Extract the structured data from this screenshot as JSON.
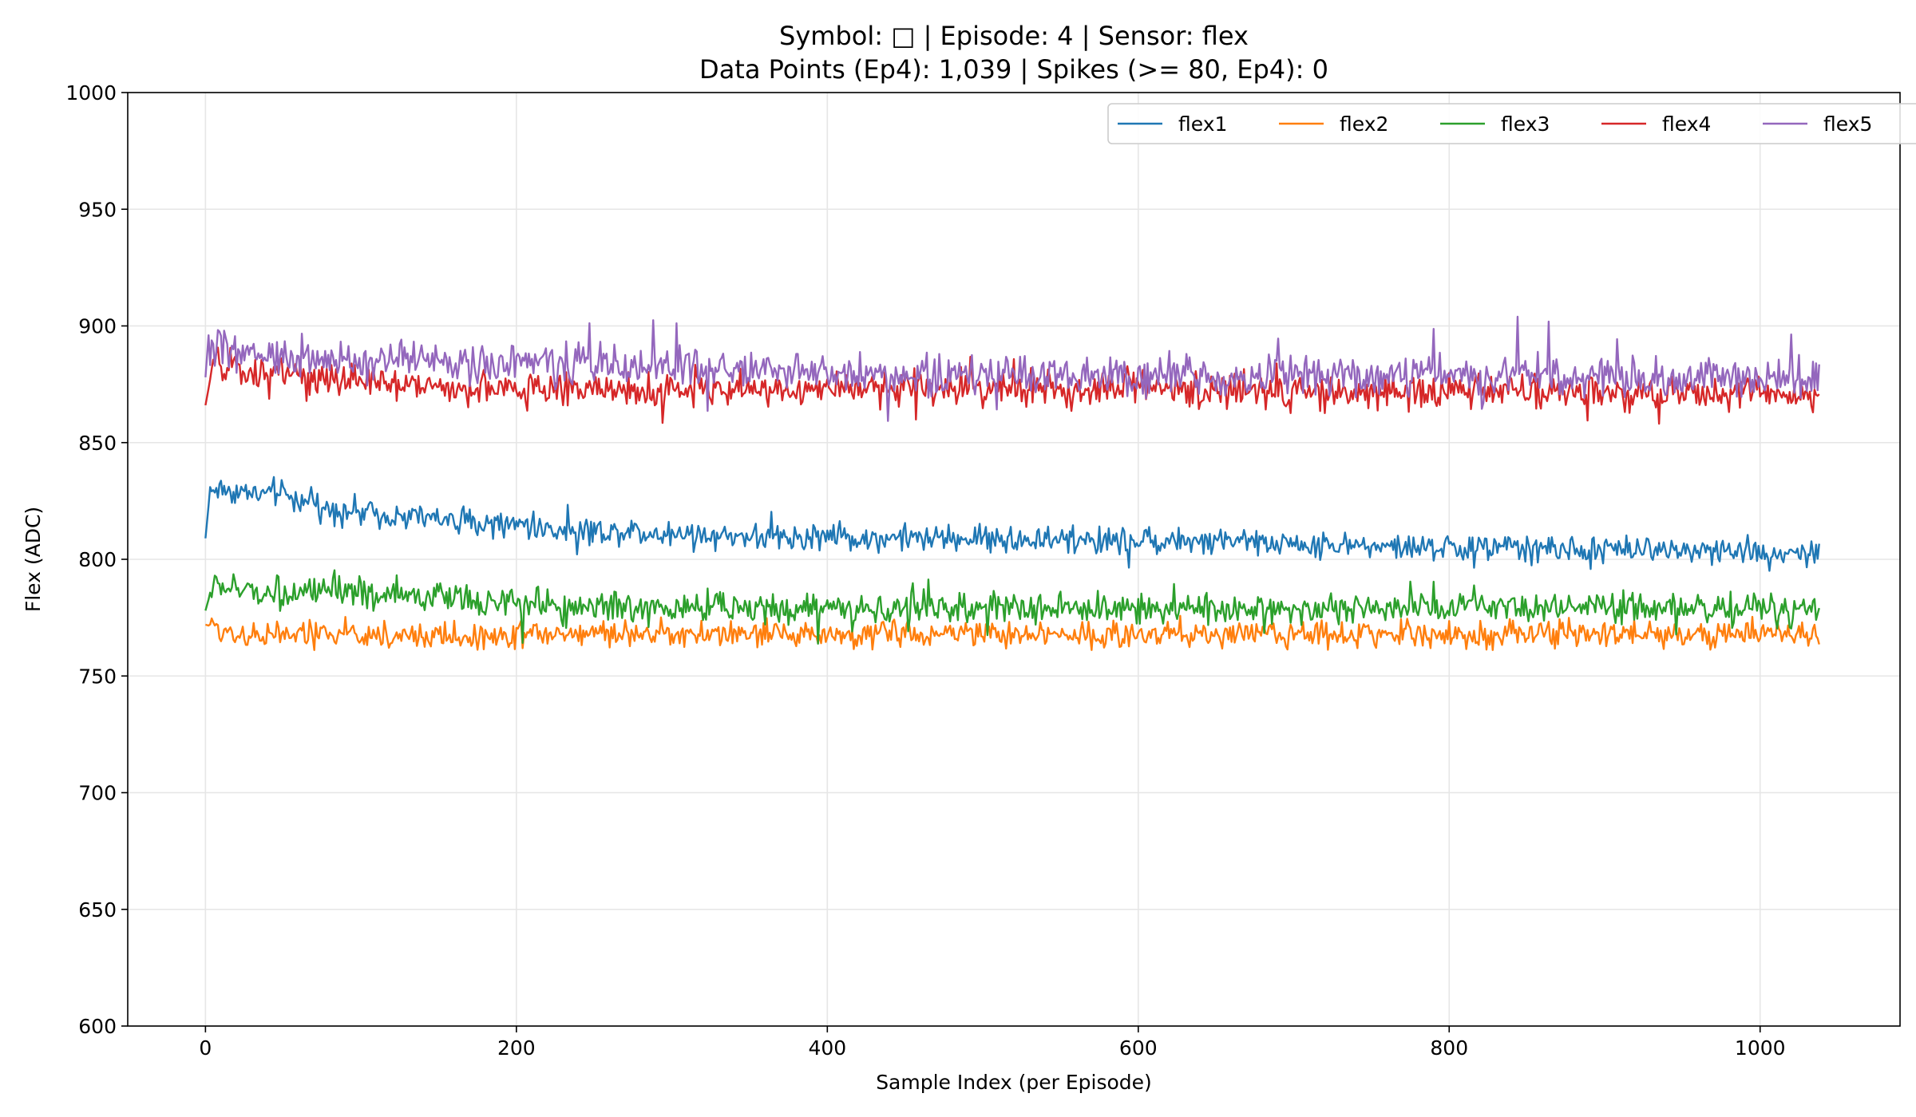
{
  "chart_data": {
    "type": "line",
    "title": "Symbol: □ | Episode: 4 | Sensor: flex",
    "subtitle": "Data Points (Ep4): 1,039 | Spikes (>= 80, Ep4): 0",
    "xlabel": "Sample Index (per Episode)",
    "ylabel": "Flex (ADC)",
    "xlim": [
      -50,
      1090
    ],
    "ylim": [
      600,
      1000
    ],
    "x_ticks": [
      0,
      200,
      400,
      600,
      800,
      1000
    ],
    "y_ticks": [
      600,
      650,
      700,
      750,
      800,
      850,
      900,
      950,
      1000
    ],
    "grid": true,
    "legend_position": "top-right",
    "n_points": 1039,
    "series": [
      {
        "name": "flex1",
        "color": "#1f77b4",
        "x": [
          0,
          3,
          10,
          20,
          30,
          40,
          50,
          60,
          70,
          80,
          90,
          100,
          110,
          120,
          130,
          140,
          150,
          160,
          170,
          180,
          190,
          200,
          205,
          210,
          220,
          240,
          260,
          280,
          300,
          320,
          340,
          360,
          380,
          400,
          420,
          440,
          460,
          480,
          500,
          520,
          540,
          560,
          580,
          600,
          620,
          640,
          660,
          680,
          700,
          720,
          740,
          760,
          780,
          800,
          820,
          840,
          860,
          880,
          900,
          920,
          940,
          960,
          980,
          1000,
          1020,
          1038
        ],
        "values": [
          809,
          830,
          830,
          829,
          828,
          828,
          828,
          826,
          823,
          822,
          821,
          820,
          820,
          819,
          818,
          818,
          817,
          817,
          816,
          816,
          815,
          814,
          818,
          813,
          813,
          812,
          812,
          812,
          811,
          811,
          810,
          810,
          810,
          810,
          809,
          809,
          809,
          809,
          809,
          808,
          808,
          808,
          808,
          808,
          808,
          807,
          807,
          807,
          807,
          806,
          806,
          805,
          805,
          805,
          805,
          805,
          805,
          804,
          804,
          804,
          804,
          804,
          803,
          803,
          803,
          803
        ]
      },
      {
        "name": "flex2",
        "color": "#ff7f0e",
        "x": [
          0,
          10,
          20,
          40,
          60,
          80,
          100,
          120,
          140,
          160,
          180,
          200,
          240,
          280,
          320,
          360,
          400,
          440,
          480,
          520,
          560,
          600,
          640,
          680,
          720,
          760,
          800,
          840,
          880,
          920,
          960,
          1000,
          1038
        ],
        "values": [
          772,
          770,
          768,
          768,
          768,
          768,
          768,
          767,
          767,
          767,
          767,
          768,
          768,
          768,
          768,
          768,
          768,
          768,
          768,
          768,
          768,
          768,
          768,
          768,
          768,
          768,
          768,
          768,
          768,
          768,
          768,
          768,
          767
        ]
      },
      {
        "name": "flex3",
        "color": "#2ca02c",
        "x": [
          0,
          5,
          10,
          20,
          40,
          60,
          80,
          100,
          120,
          140,
          160,
          180,
          200,
          240,
          280,
          320,
          360,
          400,
          440,
          480,
          520,
          560,
          600,
          640,
          680,
          720,
          760,
          800,
          840,
          880,
          920,
          960,
          1000,
          1038
        ],
        "values": [
          778,
          790,
          788,
          787,
          786,
          786,
          785,
          785,
          785,
          784,
          783,
          782,
          781,
          780,
          779,
          779,
          779,
          779,
          779,
          779,
          779,
          779,
          779,
          779,
          779,
          779,
          779,
          779,
          779,
          779,
          779,
          779,
          779,
          779
        ]
      },
      {
        "name": "flex4",
        "color": "#d62728",
        "x": [
          0,
          5,
          10,
          20,
          40,
          60,
          80,
          100,
          120,
          140,
          160,
          180,
          200,
          240,
          280,
          320,
          360,
          400,
          440,
          480,
          520,
          560,
          600,
          640,
          680,
          720,
          760,
          800,
          840,
          880,
          920,
          960,
          1000,
          1038
        ],
        "values": [
          866,
          884,
          883,
          881,
          879,
          878,
          877,
          876,
          875,
          875,
          874,
          874,
          873,
          873,
          873,
          872,
          872,
          873,
          873,
          873,
          873,
          873,
          873,
          872,
          872,
          872,
          872,
          872,
          872,
          872,
          871,
          871,
          871,
          870
        ]
      },
      {
        "name": "flex5",
        "color": "#9467bd",
        "x": [
          0,
          2,
          5,
          10,
          20,
          40,
          60,
          80,
          100,
          120,
          140,
          160,
          180,
          200,
          240,
          280,
          320,
          360,
          400,
          440,
          480,
          520,
          560,
          600,
          640,
          680,
          720,
          760,
          800,
          840,
          880,
          920,
          960,
          1000,
          1038
        ],
        "values": [
          878,
          896,
          892,
          890,
          888,
          887,
          886,
          886,
          885,
          885,
          885,
          884,
          884,
          884,
          884,
          883,
          882,
          881,
          880,
          879,
          879,
          879,
          879,
          879,
          879,
          879,
          879,
          879,
          879,
          879,
          878,
          878,
          878,
          878,
          878
        ]
      }
    ]
  }
}
